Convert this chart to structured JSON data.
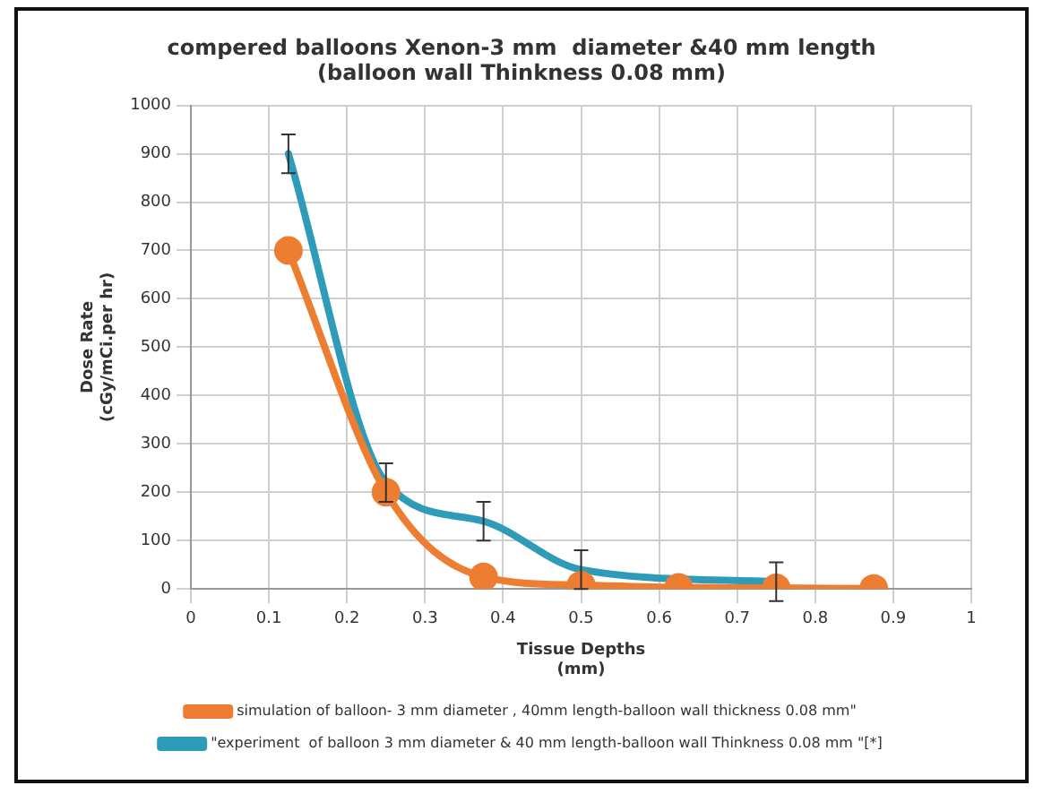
{
  "chart_data": {
    "type": "line",
    "title": "compered balloons Xenon-3 mm  diameter &40 mm length\n(balloon wall Thinkness 0.08 mm)",
    "xlabel": "Tissue Depths\n(mm)",
    "ylabel": "Dose Rate\n(cGy/mCi.per hr)",
    "xlim": [
      0,
      1
    ],
    "xticks": [
      0,
      0.1,
      0.2,
      0.3,
      0.4,
      0.5,
      0.6,
      0.7,
      0.8,
      0.9,
      1
    ],
    "ylim": [
      0,
      1000
    ],
    "yticks": [
      0,
      100,
      200,
      300,
      400,
      500,
      600,
      700,
      800,
      900,
      1000
    ],
    "grid": true,
    "legend": "bottom",
    "series": [
      {
        "name": "simulation of balloon- 3 mm diameter , 40mm length-balloon wall thickness 0.08 mm\"",
        "color": "#ed7d31",
        "marker": "circle",
        "x": [
          0.125,
          0.25,
          0.375,
          0.5,
          0.625,
          0.75,
          0.875
        ],
        "values": [
          700,
          200,
          25,
          8,
          3,
          2,
          1
        ]
      },
      {
        "name": "\"experiment  of balloon 3 mm diameter & 40 mm length-balloon wall Thinkness 0.08 mm \"[*]",
        "color": "#2e9bb8",
        "marker": "none",
        "x": [
          0.125,
          0.25,
          0.375,
          0.5,
          0.75
        ],
        "values": [
          900,
          220,
          140,
          40,
          15
        ],
        "errors": [
          40,
          40,
          40,
          40,
          40
        ]
      }
    ]
  }
}
